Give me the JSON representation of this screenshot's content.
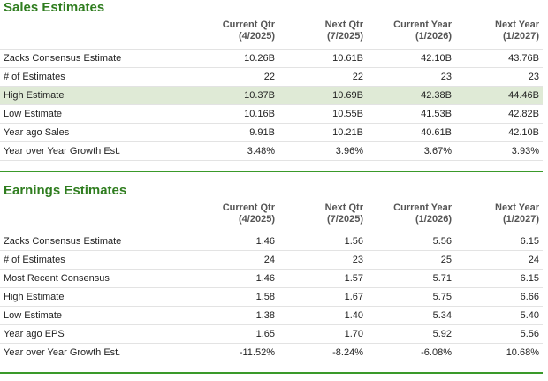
{
  "sections": [
    {
      "title": "Sales Estimates",
      "columns": [
        {
          "name": "Current Qtr",
          "period": "(4/2025)"
        },
        {
          "name": "Next Qtr",
          "period": "(7/2025)"
        },
        {
          "name": "Current Year",
          "period": "(1/2026)"
        },
        {
          "name": "Next Year",
          "period": "(1/2027)"
        }
      ],
      "rows": [
        [
          "Zacks Consensus Estimate",
          "10.26B",
          "10.61B",
          "42.10B",
          "43.76B"
        ],
        [
          "# of Estimates",
          "22",
          "22",
          "23",
          "23"
        ],
        [
          "High Estimate",
          "10.37B",
          "10.69B",
          "42.38B",
          "44.46B"
        ],
        [
          "Low Estimate",
          "10.16B",
          "10.55B",
          "41.53B",
          "42.82B"
        ],
        [
          "Year ago Sales",
          "9.91B",
          "10.21B",
          "40.61B",
          "42.10B"
        ],
        [
          "Year over Year Growth Est.",
          "3.48%",
          "3.96%",
          "3.67%",
          "3.93%"
        ]
      ]
    },
    {
      "title": "Earnings Estimates",
      "columns": [
        {
          "name": "Current Qtr",
          "period": "(4/2025)"
        },
        {
          "name": "Next Qtr",
          "period": "(7/2025)"
        },
        {
          "name": "Current Year",
          "period": "(1/2026)"
        },
        {
          "name": "Next Year",
          "period": "(1/2027)"
        }
      ],
      "rows": [
        [
          "Zacks Consensus Estimate",
          "1.46",
          "1.56",
          "5.56",
          "6.15"
        ],
        [
          "# of Estimates",
          "24",
          "23",
          "25",
          "24"
        ],
        [
          "Most Recent Consensus",
          "1.46",
          "1.57",
          "5.71",
          "6.15"
        ],
        [
          "High Estimate",
          "1.58",
          "1.67",
          "5.75",
          "6.66"
        ],
        [
          "Low Estimate",
          "1.38",
          "1.40",
          "5.34",
          "5.40"
        ],
        [
          "Year ago EPS",
          "1.65",
          "1.70",
          "5.92",
          "5.56"
        ],
        [
          "Year over Year Growth Est.",
          "-11.52%",
          "-8.24%",
          "-6.08%",
          "10.68%"
        ]
      ]
    }
  ]
}
